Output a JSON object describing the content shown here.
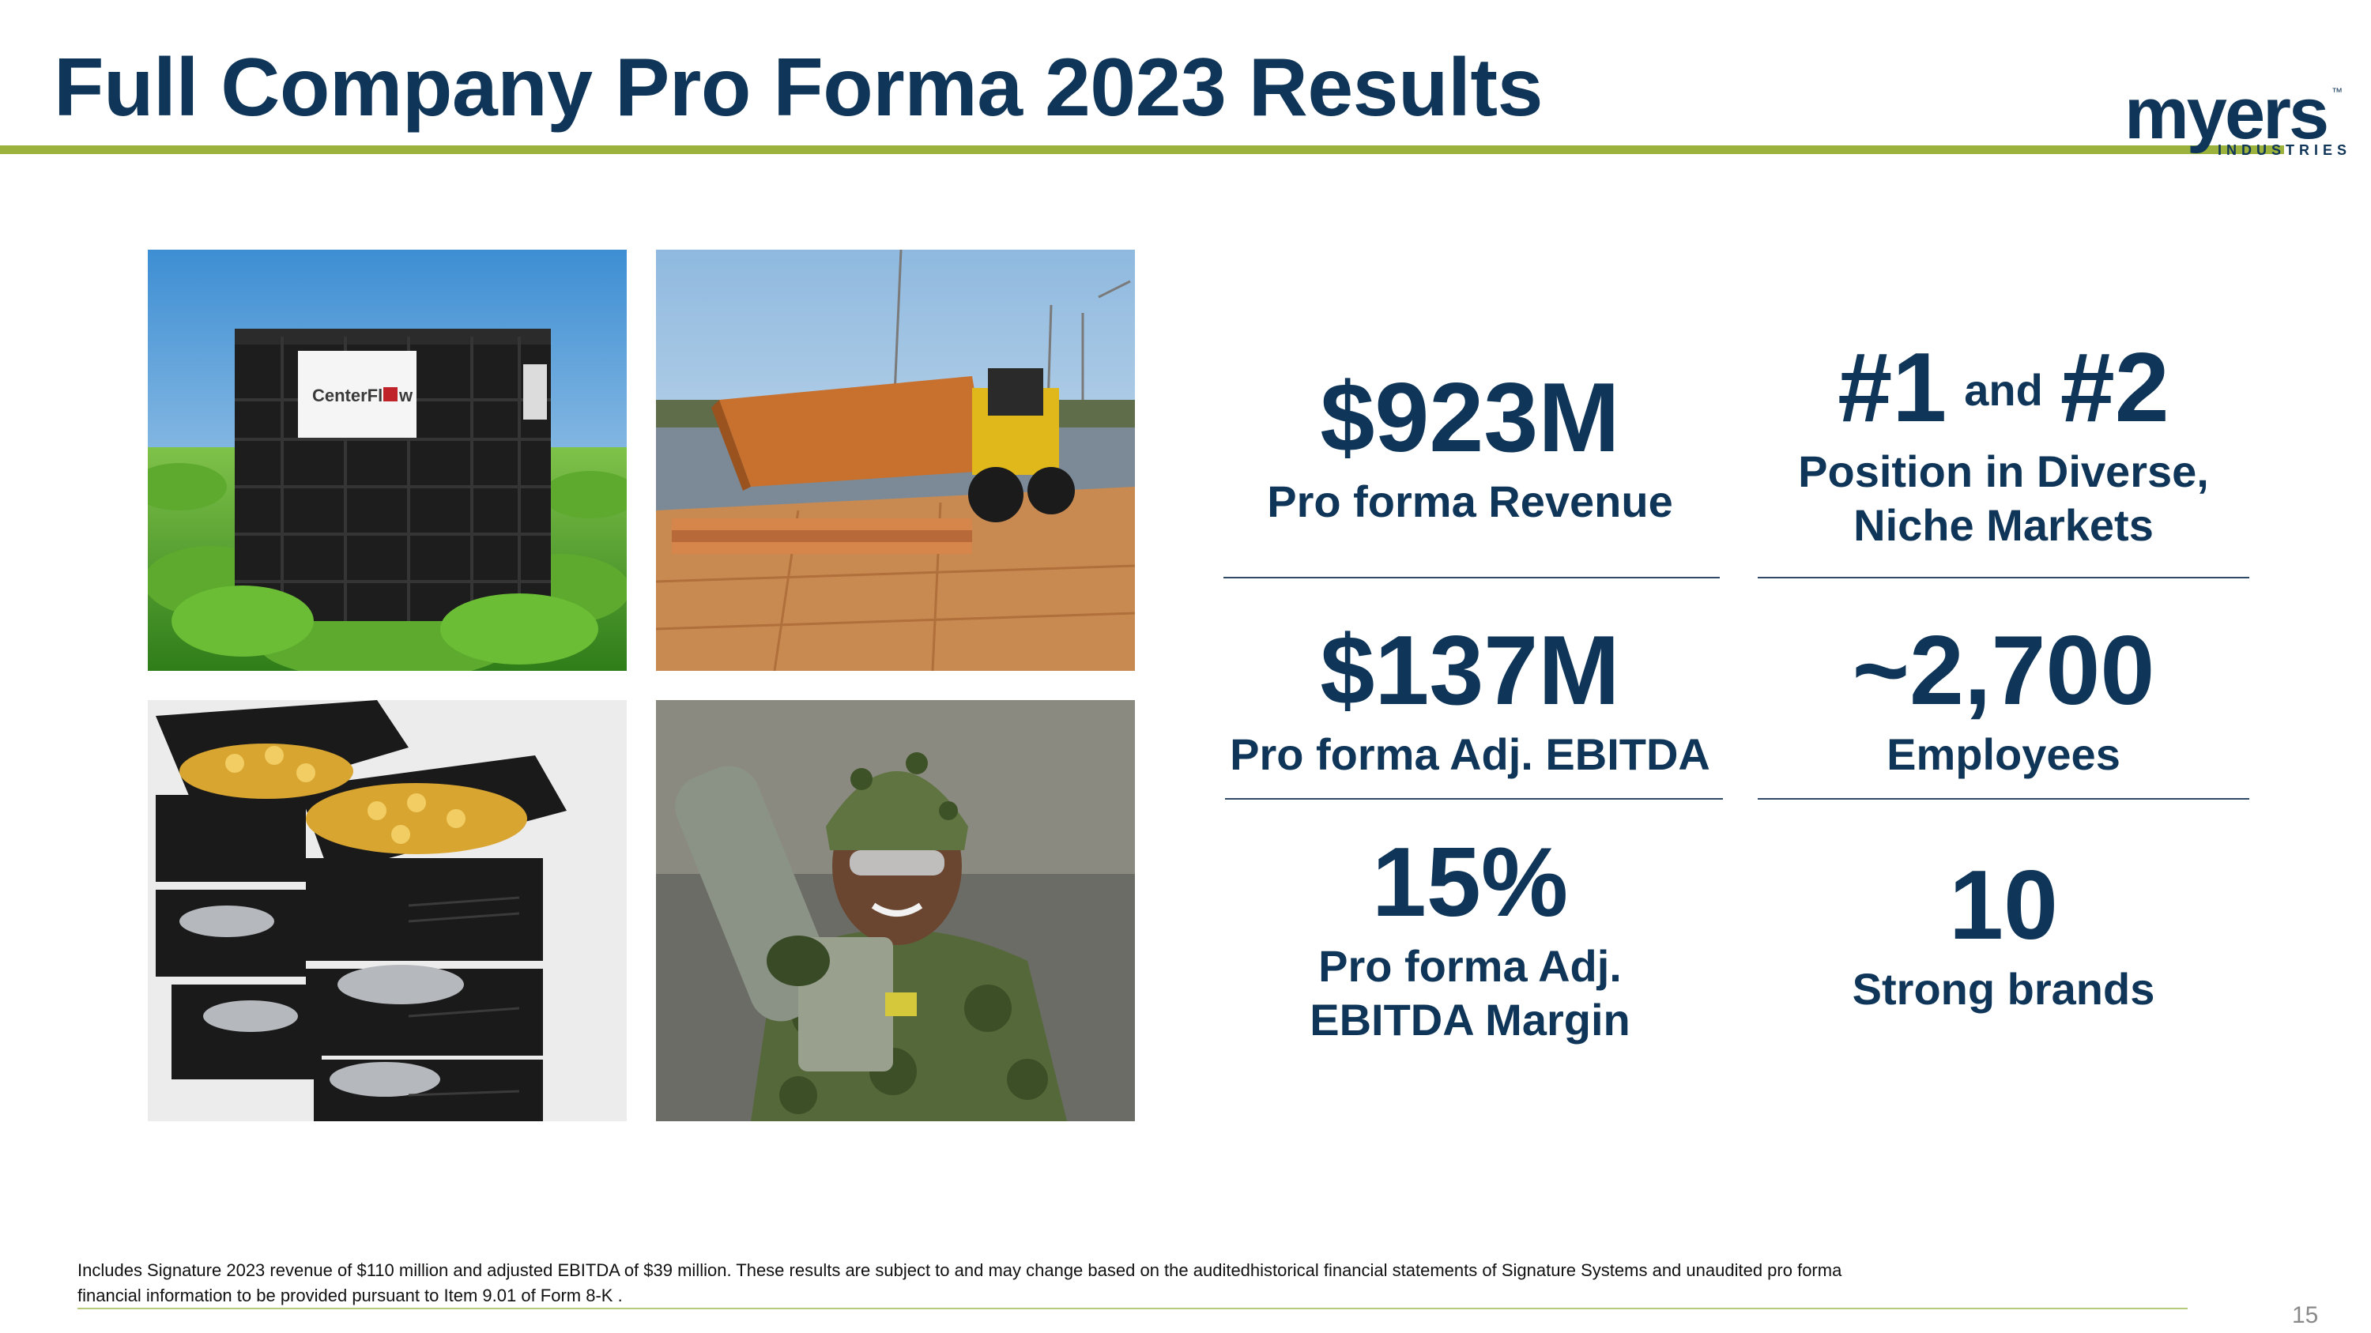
{
  "slide": {
    "title": "Full Company Pro Forma 2023 Results",
    "page_number": "15",
    "accent_color": "#9bb33c",
    "text_color": "#0f3558"
  },
  "logo": {
    "word": "myers",
    "sub": "INDUSTRIES",
    "tm": "™"
  },
  "photos": {
    "crate_brand": "CenterFl",
    "crate_brand_tail": "w"
  },
  "stats": {
    "revenue": {
      "value": "$923M",
      "label": "Pro forma Revenue"
    },
    "ebitda": {
      "value": "$137M",
      "label": "Pro forma Adj. EBITDA"
    },
    "margin": {
      "value": "15%",
      "label_line1": "Pro forma Adj.",
      "label_line2": "EBITDA Margin"
    },
    "position": {
      "value_a": "#1",
      "joiner": "and",
      "value_b": "#2",
      "label_line1": "Position in Diverse,",
      "label_line2": "Niche Markets"
    },
    "employees": {
      "value": "~2,700",
      "label": "Employees"
    },
    "brands": {
      "value": "10",
      "label": "Strong brands"
    }
  },
  "footnote": {
    "line1": "Includes Signature 2023 revenue of $110 million and adjusted EBITDA of $39 million. These results are subject to and may change based on the auditedhistorical financial statements of Signature Systems and unaudited pro forma",
    "line2": "financial information to be provided pursuant to Item 9.01 of Form 8-K ."
  }
}
